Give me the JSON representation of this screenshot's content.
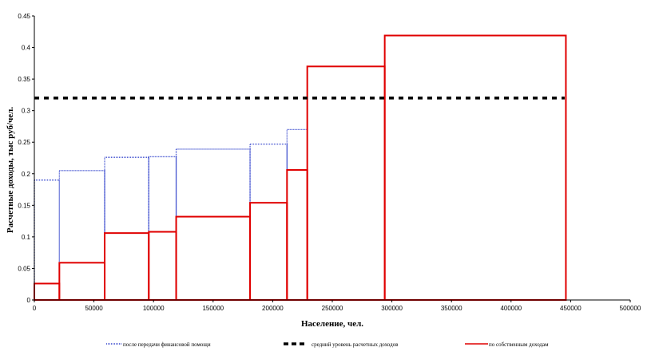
{
  "chart_data": {
    "type": "bar",
    "title": "",
    "xlabel": "Население, чел.",
    "ylabel": "Расчетные доходы, тыс руб/чел.",
    "xlim": [
      0,
      500000
    ],
    "ylim": [
      0,
      0.45
    ],
    "x_ticks": [
      "0",
      "50000",
      "100000",
      "150000",
      "200000",
      "250000",
      "300000",
      "350000",
      "400000",
      "450000",
      "500000"
    ],
    "y_ticks": [
      "0",
      "0.05",
      "0.1",
      "0.15",
      "0.2",
      "0.25",
      "0.3",
      "0.35",
      "0.4",
      "0.45"
    ],
    "grid": false,
    "legend_position": "bottom",
    "series": [
      {
        "name": "после передачи финансовой помощи",
        "color": "#3344cc",
        "style": "dotted",
        "bars": [
          {
            "x0": 0,
            "x1": 21000,
            "value": 0.19
          },
          {
            "x0": 21000,
            "x1": 59000,
            "value": 0.205
          },
          {
            "x0": 59000,
            "x1": 96000,
            "value": 0.226
          },
          {
            "x0": 96000,
            "x1": 119000,
            "value": 0.227
          },
          {
            "x0": 119000,
            "x1": 181000,
            "value": 0.239
          },
          {
            "x0": 181000,
            "x1": 212000,
            "value": 0.247
          },
          {
            "x0": 212000,
            "x1": 229000,
            "value": 0.27
          },
          {
            "x0": 229000,
            "x1": 294000,
            "value": 0.37
          },
          {
            "x0": 294000,
            "x1": 446000,
            "value": 0.419
          }
        ]
      },
      {
        "name": "средний уровень расчетных доходов",
        "color": "#000000",
        "style": "dashed",
        "line": {
          "x0": 0,
          "x1": 445000,
          "value": 0.32
        }
      },
      {
        "name": "по собственным доходам",
        "color": "#e00000",
        "style": "solid",
        "bars": [
          {
            "x0": 0,
            "x1": 21000,
            "value": 0.026
          },
          {
            "x0": 21000,
            "x1": 59000,
            "value": 0.059
          },
          {
            "x0": 59000,
            "x1": 96000,
            "value": 0.106
          },
          {
            "x0": 96000,
            "x1": 119000,
            "value": 0.108
          },
          {
            "x0": 119000,
            "x1": 181000,
            "value": 0.132
          },
          {
            "x0": 181000,
            "x1": 212000,
            "value": 0.154
          },
          {
            "x0": 212000,
            "x1": 229000,
            "value": 0.206
          },
          {
            "x0": 229000,
            "x1": 294000,
            "value": 0.37
          },
          {
            "x0": 294000,
            "x1": 446000,
            "value": 0.419
          }
        ]
      }
    ]
  }
}
